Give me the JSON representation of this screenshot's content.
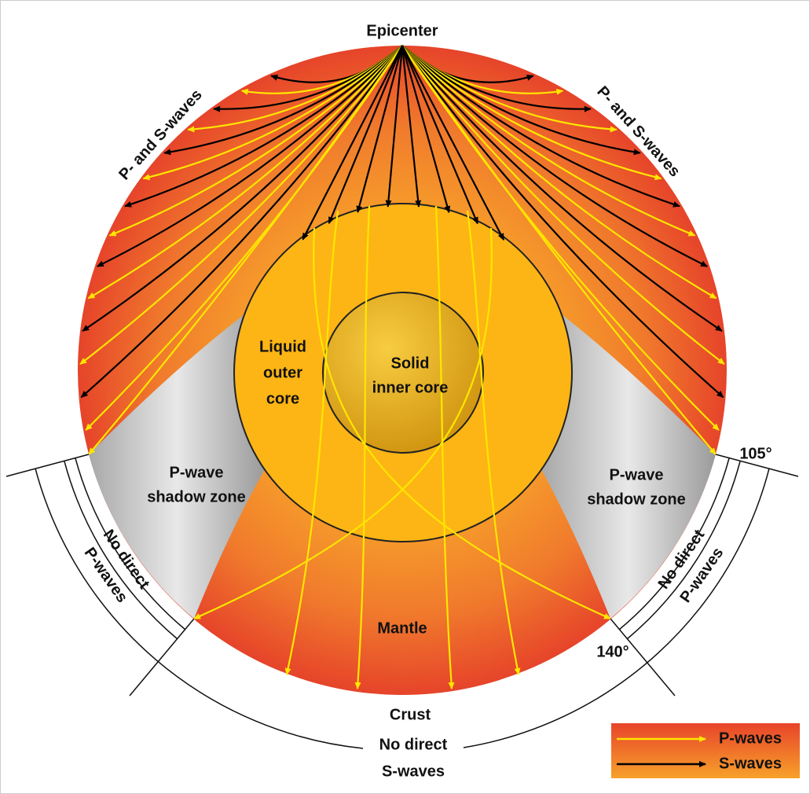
{
  "labels": {
    "epicenter": "Epicenter",
    "p_and_s_left": "P- and S-waves",
    "p_and_s_right": "P- and S-waves",
    "outer_core": [
      "Liquid",
      "outer",
      "core"
    ],
    "inner_core": [
      "Solid",
      "inner core"
    ],
    "shadow_left": [
      "P-wave",
      "shadow zone"
    ],
    "shadow_right": [
      "P-wave",
      "shadow zone"
    ],
    "mantle": "Mantle",
    "crust": "Crust",
    "no_p_left": [
      "No direct",
      "P-waves"
    ],
    "no_p_right": [
      "No direct",
      "P-waves"
    ],
    "no_s": [
      "No direct",
      "S-waves"
    ],
    "angle_105": "105°",
    "angle_140": "140°"
  },
  "legend": [
    {
      "label": "P-waves",
      "color": "#ffe600"
    },
    {
      "label": "S-waves",
      "color": "#000000"
    }
  ]
}
